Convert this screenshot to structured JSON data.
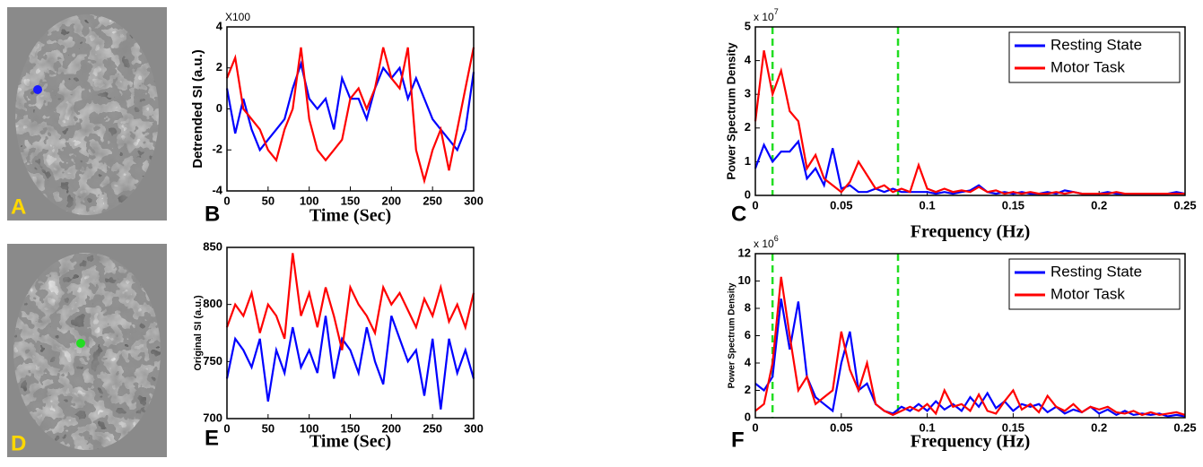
{
  "images": [
    {
      "label": "A",
      "marker_color": "#1a1aff"
    },
    {
      "label": "D",
      "marker_color": "#22dd22"
    }
  ],
  "chart_data": [
    {
      "type": "line",
      "panel_label": "B",
      "scale_label": "X100",
      "x_label": "Time (Sec)",
      "y_label": "Detrended SI (a.u.)",
      "x": [
        0,
        10,
        20,
        30,
        40,
        50,
        60,
        70,
        80,
        90,
        100,
        110,
        120,
        130,
        140,
        150,
        160,
        170,
        180,
        190,
        200,
        210,
        220,
        230,
        240,
        250,
        260,
        270,
        280,
        290,
        300
      ],
      "series": [
        {
          "name": "Resting State",
          "color": "#0000ff",
          "values": [
            1,
            -1.2,
            0.5,
            -1,
            -2,
            -1.5,
            -1,
            -0.5,
            1,
            2.2,
            0.5,
            0,
            0.5,
            -1,
            1.5,
            0.5,
            0.5,
            -0.5,
            1,
            2,
            1.5,
            2,
            0.5,
            1.5,
            0.5,
            -0.5,
            -1,
            -1.5,
            -2,
            -1,
            1.8
          ]
        },
        {
          "name": "Motor Task",
          "color": "#ff0000",
          "values": [
            1.5,
            2.5,
            0,
            -0.5,
            -1,
            -2,
            -2.5,
            -1,
            0,
            3,
            -0.5,
            -2,
            -2.5,
            -2,
            -1.5,
            0.5,
            1,
            0,
            1,
            3,
            1.5,
            1,
            3,
            -2,
            -3.5,
            -2,
            -1,
            -3,
            -1,
            1,
            3
          ]
        }
      ],
      "xlim": [
        0,
        300
      ],
      "xticks": [
        0,
        50,
        100,
        150,
        200,
        250,
        300
      ],
      "ylim": [
        -4,
        4
      ],
      "yticks": [
        -4,
        -2,
        0,
        2,
        4
      ]
    },
    {
      "type": "line",
      "panel_label": "C",
      "scale_label": "x 10",
      "scale_exponent": "7",
      "x_label": "Frequency (Hz)",
      "y_label": "Power Spectrum Density",
      "legend": "upper right",
      "vlines": [
        {
          "x": 0.01,
          "color": "#22dd22"
        },
        {
          "x": 0.083,
          "color": "#22dd22"
        }
      ],
      "x": [
        0,
        0.005,
        0.01,
        0.015,
        0.02,
        0.025,
        0.03,
        0.035,
        0.04,
        0.045,
        0.05,
        0.055,
        0.06,
        0.065,
        0.07,
        0.075,
        0.08,
        0.085,
        0.09,
        0.095,
        0.1,
        0.105,
        0.11,
        0.115,
        0.12,
        0.125,
        0.13,
        0.135,
        0.14,
        0.145,
        0.15,
        0.155,
        0.16,
        0.165,
        0.17,
        0.175,
        0.18,
        0.185,
        0.19,
        0.195,
        0.2,
        0.205,
        0.21,
        0.215,
        0.22,
        0.225,
        0.23,
        0.235,
        0.24,
        0.245,
        0.25
      ],
      "series": [
        {
          "name": "Resting State",
          "color": "#0000ff",
          "values": [
            0.8,
            1.5,
            1.0,
            1.3,
            1.3,
            1.6,
            0.5,
            0.8,
            0.3,
            1.4,
            0.2,
            0.3,
            0.1,
            0.1,
            0.2,
            0.1,
            0.2,
            0.1,
            0.1,
            0.1,
            0.1,
            0.05,
            0.1,
            0.05,
            0.1,
            0.15,
            0.3,
            0.1,
            0.05,
            0.1,
            0.05,
            0.1,
            0.05,
            0.05,
            0.1,
            0.05,
            0.15,
            0.1,
            0.05,
            0.05,
            0.05,
            0.1,
            0.05,
            0.05,
            0.05,
            0.05,
            0.05,
            0.05,
            0.05,
            0.1,
            0.05
          ]
        },
        {
          "name": "Motor Task",
          "color": "#ff0000",
          "values": [
            2.2,
            4.3,
            3.0,
            3.7,
            2.5,
            2.2,
            0.8,
            1.2,
            0.5,
            0.3,
            0.1,
            0.4,
            1.0,
            0.6,
            0.2,
            0.3,
            0.1,
            0.2,
            0.1,
            0.9,
            0.2,
            0.1,
            0.2,
            0.1,
            0.15,
            0.1,
            0.25,
            0.1,
            0.15,
            0.05,
            0.1,
            0.05,
            0.1,
            0.05,
            0.05,
            0.1,
            0.05,
            0.1,
            0.05,
            0.05,
            0.05,
            0.05,
            0.1,
            0.05,
            0.05,
            0.05,
            0.05,
            0.05,
            0.05,
            0.05,
            0.05
          ]
        }
      ],
      "xlim": [
        0,
        0.25
      ],
      "xticks": [
        0,
        0.05,
        0.1,
        0.15,
        0.2,
        0.25
      ],
      "ylim": [
        0,
        5
      ],
      "yticks": [
        0,
        1,
        2,
        3,
        4,
        5
      ]
    },
    {
      "type": "line",
      "panel_label": "E",
      "x_label": "Time (Sec)",
      "y_label": "Original SI (a.u.)",
      "x": [
        0,
        10,
        20,
        30,
        40,
        50,
        60,
        70,
        80,
        90,
        100,
        110,
        120,
        130,
        140,
        150,
        160,
        170,
        180,
        190,
        200,
        210,
        220,
        230,
        240,
        250,
        260,
        270,
        280,
        290,
        300
      ],
      "series": [
        {
          "name": "Resting State",
          "color": "#0000ff",
          "values": [
            735,
            770,
            760,
            745,
            770,
            715,
            760,
            740,
            780,
            745,
            760,
            740,
            790,
            735,
            770,
            760,
            740,
            780,
            750,
            730,
            790,
            770,
            750,
            760,
            720,
            770,
            708,
            770,
            740,
            760,
            735
          ]
        },
        {
          "name": "Motor Task",
          "color": "#ff0000",
          "values": [
            780,
            800,
            790,
            810,
            775,
            800,
            790,
            770,
            845,
            790,
            810,
            780,
            815,
            790,
            760,
            815,
            800,
            790,
            775,
            815,
            800,
            810,
            795,
            780,
            805,
            790,
            815,
            785,
            800,
            780,
            810
          ]
        }
      ],
      "xlim": [
        0,
        300
      ],
      "xticks": [
        0,
        50,
        100,
        150,
        200,
        250,
        300
      ],
      "ylim": [
        700,
        850
      ],
      "yticks": [
        700,
        750,
        800,
        850
      ]
    },
    {
      "type": "line",
      "panel_label": "F",
      "scale_label": "x 10",
      "scale_exponent": "6",
      "x_label": "Frequency (Hz)",
      "y_label": "Power Spectrum Density",
      "legend": "upper right",
      "vlines": [
        {
          "x": 0.01,
          "color": "#22dd22"
        },
        {
          "x": 0.083,
          "color": "#22dd22"
        }
      ],
      "x": [
        0,
        0.005,
        0.01,
        0.015,
        0.02,
        0.025,
        0.03,
        0.035,
        0.04,
        0.045,
        0.05,
        0.055,
        0.06,
        0.065,
        0.07,
        0.075,
        0.08,
        0.085,
        0.09,
        0.095,
        0.1,
        0.105,
        0.11,
        0.115,
        0.12,
        0.125,
        0.13,
        0.135,
        0.14,
        0.145,
        0.15,
        0.155,
        0.16,
        0.165,
        0.17,
        0.175,
        0.18,
        0.185,
        0.19,
        0.195,
        0.2,
        0.205,
        0.21,
        0.215,
        0.22,
        0.225,
        0.23,
        0.235,
        0.24,
        0.245,
        0.25
      ],
      "series": [
        {
          "name": "Resting State",
          "color": "#0000ff",
          "values": [
            2.5,
            2.0,
            3.0,
            8.7,
            5.0,
            8.5,
            3.0,
            1.5,
            1.0,
            0.5,
            4.0,
            6.3,
            2.0,
            2.5,
            1.0,
            0.5,
            0.3,
            0.8,
            0.5,
            1.0,
            0.5,
            1.2,
            0.6,
            1.0,
            0.5,
            1.5,
            0.8,
            1.8,
            0.7,
            1.2,
            0.5,
            1.0,
            0.8,
            1.0,
            0.4,
            0.8,
            0.3,
            0.6,
            0.4,
            0.8,
            0.3,
            0.6,
            0.2,
            0.5,
            0.2,
            0.3,
            0.2,
            0.3,
            0.1,
            0.2,
            0.1
          ]
        },
        {
          "name": "Motor Task",
          "color": "#ff0000",
          "values": [
            0.5,
            1.0,
            4.0,
            10.3,
            6.0,
            2.0,
            3.0,
            1.0,
            1.5,
            2.0,
            6.3,
            3.5,
            2.0,
            4.0,
            1.0,
            0.5,
            0.2,
            0.5,
            0.8,
            0.5,
            1.0,
            0.3,
            2.0,
            0.8,
            1.0,
            0.5,
            1.7,
            0.5,
            0.3,
            1.2,
            2.0,
            0.6,
            1.0,
            0.4,
            1.6,
            0.8,
            0.5,
            1.0,
            0.4,
            0.8,
            0.6,
            0.8,
            0.4,
            0.3,
            0.5,
            0.2,
            0.4,
            0.2,
            0.3,
            0.4,
            0.2
          ]
        }
      ],
      "xlim": [
        0,
        0.25
      ],
      "xticks": [
        0,
        0.05,
        0.1,
        0.15,
        0.2,
        0.25
      ],
      "ylim": [
        0,
        12
      ],
      "yticks": [
        0,
        2,
        4,
        6,
        8,
        10,
        12
      ]
    }
  ]
}
